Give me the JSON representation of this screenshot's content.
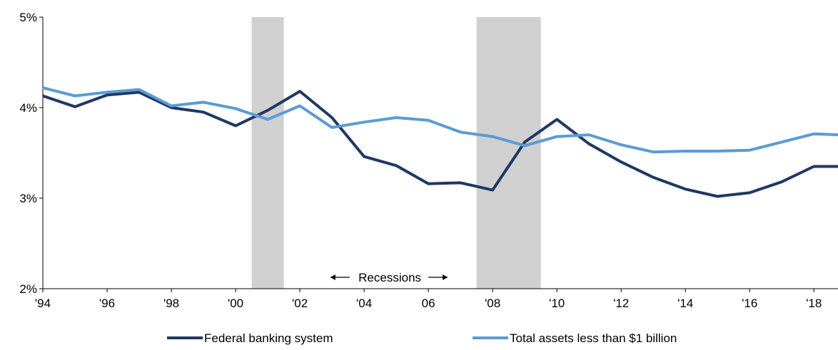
{
  "colors": {
    "federal": "#1f3864",
    "small_banks": "#5b9bd5",
    "recession_band": "#d0d0d0",
    "axis": "#000000"
  },
  "chart_data": {
    "type": "line",
    "title": "",
    "xlabel": "",
    "ylabel": "",
    "xlim": [
      1994,
      2018.75
    ],
    "ylim": [
      2,
      5
    ],
    "y_ticks": [
      {
        "value": 2,
        "label": "2%"
      },
      {
        "value": 3,
        "label": "3%"
      },
      {
        "value": 4,
        "label": "4%"
      },
      {
        "value": 5,
        "label": "5%"
      }
    ],
    "x_ticks": [
      {
        "value": 1994,
        "label": "'94"
      },
      {
        "value": 1996,
        "label": "'96"
      },
      {
        "value": 1998,
        "label": "'98"
      },
      {
        "value": 2000,
        "label": "'00"
      },
      {
        "value": 2002,
        "label": "'02"
      },
      {
        "value": 2004,
        "label": "'04"
      },
      {
        "value": 2006,
        "label": "06"
      },
      {
        "value": 2008,
        "label": "'08"
      },
      {
        "value": 2010,
        "label": "'10"
      },
      {
        "value": 2012,
        "label": "'12"
      },
      {
        "value": 2014,
        "label": "'14"
      },
      {
        "value": 2016,
        "label": "'16"
      },
      {
        "value": 2018,
        "label": "'18"
      }
    ],
    "recessions": [
      {
        "start": 2000.5,
        "end": 2001.5
      },
      {
        "start": 2007.5,
        "end": 2009.5
      }
    ],
    "recession_label": "Recessions",
    "legend_position": "bottom",
    "grid": false,
    "series": [
      {
        "name": "Federal banking system",
        "color_key": "federal",
        "x": [
          1994,
          1995,
          1996,
          1997,
          1998,
          1999,
          2000,
          2001,
          2002,
          2003,
          2004,
          2005,
          2006,
          2007,
          2008,
          2009,
          2010,
          2011,
          2012,
          2013,
          2014,
          2015,
          2016,
          2017,
          2018,
          2018.75
        ],
        "values": [
          4.13,
          4.01,
          4.14,
          4.17,
          4.0,
          3.95,
          3.8,
          3.97,
          4.18,
          3.89,
          3.46,
          3.36,
          3.16,
          3.17,
          3.09,
          3.62,
          3.87,
          3.6,
          3.4,
          3.23,
          3.1,
          3.02,
          3.06,
          3.18,
          3.35,
          3.35
        ]
      },
      {
        "name": "Total assets less than $1 billion",
        "color_key": "small_banks",
        "x": [
          1994,
          1995,
          1996,
          1997,
          1998,
          1999,
          2000,
          2001,
          2002,
          2003,
          2004,
          2005,
          2006,
          2007,
          2008,
          2009,
          2010,
          2011,
          2012,
          2013,
          2014,
          2015,
          2016,
          2017,
          2018,
          2018.75
        ],
        "values": [
          4.22,
          4.13,
          4.17,
          4.2,
          4.02,
          4.06,
          3.99,
          3.87,
          4.02,
          3.78,
          3.84,
          3.89,
          3.86,
          3.73,
          3.68,
          3.58,
          3.68,
          3.7,
          3.59,
          3.51,
          3.52,
          3.52,
          3.53,
          3.62,
          3.71,
          3.7
        ]
      }
    ]
  }
}
